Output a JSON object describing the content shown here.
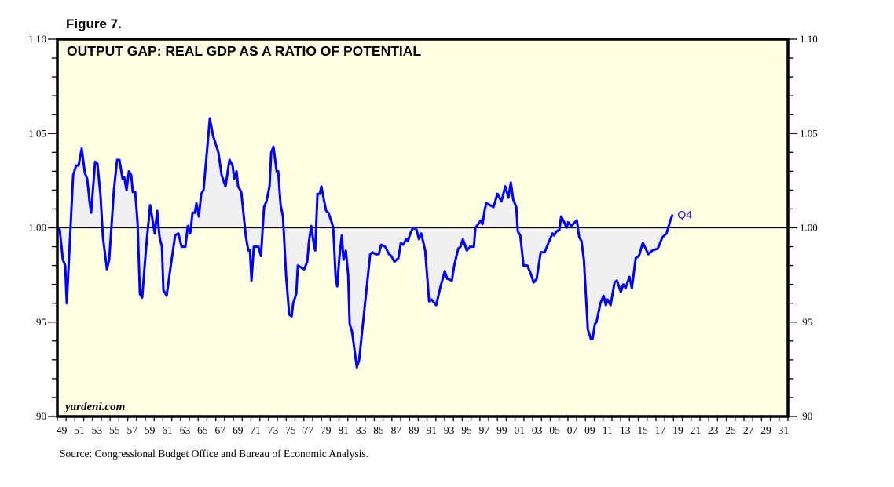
{
  "figure_label": "Figure 7.",
  "source": "Source: Congressional Budget Office and Bureau of Economic Analysis.",
  "watermark": "yardeni.com",
  "colors": {
    "line": "#0000ff",
    "plot_bg": "#ffffe3",
    "fill": "#f0f0f0",
    "end_label": "#2200ff"
  },
  "chart_data": {
    "type": "line",
    "title": "OUTPUT GAP: REAL GDP AS A RATIO OF POTENTIAL",
    "xlabel": "",
    "ylabel": "",
    "xlim": [
      1949,
      2032
    ],
    "ylim": [
      0.9,
      1.1
    ],
    "reference_line": 1.0,
    "fill_to_reference": true,
    "y_ticks": [
      "1.10",
      "1.05",
      "1.00",
      ".95",
      ".90"
    ],
    "y_tick_values": [
      1.1,
      1.05,
      1.0,
      0.95,
      0.9
    ],
    "x_tick_labels": [
      "49",
      "51",
      "53",
      "55",
      "57",
      "59",
      "61",
      "63",
      "65",
      "67",
      "69",
      "71",
      "73",
      "75",
      "77",
      "79",
      "81",
      "83",
      "85",
      "87",
      "89",
      "91",
      "93",
      "95",
      "97",
      "99",
      "01",
      "03",
      "05",
      "07",
      "09",
      "11",
      "13",
      "15",
      "17",
      "19",
      "21",
      "23",
      "25",
      "27",
      "29",
      "31"
    ],
    "end_label": "Q4",
    "legend": "none",
    "grid": false,
    "series": [
      {
        "name": "Real GDP / Potential",
        "x": [
          1949.0,
          1949.27,
          1949.63,
          1949.89,
          1950.07,
          1950.34,
          1950.79,
          1951.14,
          1951.41,
          1951.77,
          1952.13,
          1952.39,
          1952.66,
          1952.84,
          1953.29,
          1953.55,
          1953.91,
          1954.18,
          1954.63,
          1954.89,
          1955.43,
          1955.79,
          1956.05,
          1956.41,
          1956.59,
          1956.86,
          1957.13,
          1957.39,
          1957.57,
          1957.84,
          1958.11,
          1958.38,
          1958.64,
          1959.09,
          1959.54,
          1960.07,
          1960.34,
          1960.61,
          1960.88,
          1961.05,
          1961.41,
          1961.86,
          1962.39,
          1962.75,
          1963.11,
          1963.55,
          1963.82,
          1964.09,
          1964.36,
          1964.63,
          1964.8,
          1965.07,
          1965.34,
          1965.61,
          1966.32,
          1966.68,
          1967.3,
          1967.66,
          1968.11,
          1968.55,
          1968.91,
          1969.09,
          1969.36,
          1969.54,
          1969.89,
          1970.43,
          1970.7,
          1970.88,
          1971.05,
          1971.32,
          1971.68,
          1971.86,
          1972.13,
          1972.48,
          1972.75,
          1973.11,
          1973.29,
          1973.55,
          1973.91,
          1974.09,
          1974.36,
          1974.63,
          1974.98,
          1975.34,
          1975.61,
          1975.79,
          1976.14,
          1976.32,
          1976.68,
          1977.04,
          1977.39,
          1977.57,
          1977.84,
          1978.11,
          1978.29,
          1978.55,
          1978.82,
          1979.0,
          1979.27,
          1979.54,
          1979.8,
          1980.16,
          1980.34,
          1980.61,
          1980.79,
          1981.05,
          1981.32,
          1981.5,
          1981.77,
          1982.04,
          1982.21,
          1982.48,
          1983.02,
          1983.29,
          1983.82,
          1984.54,
          1984.8,
          1985.16,
          1985.52,
          1985.79,
          1986.23,
          1986.68,
          1986.95,
          1987.3,
          1987.75,
          1988.02,
          1988.29,
          1988.64,
          1988.82,
          1989.18,
          1989.45,
          1989.8,
          1990.07,
          1990.34,
          1990.79,
          1991.23,
          1991.5,
          1992.04,
          1992.48,
          1993.02,
          1993.29,
          1993.82,
          1994.09,
          1994.54,
          1994.8,
          1995.07,
          1995.52,
          1995.88,
          1996.32,
          1996.5,
          1997.13,
          1997.3,
          1997.57,
          1997.75,
          1998.55,
          1999.0,
          1999.45,
          1999.89,
          2000.25,
          2000.52,
          2000.79,
          2001.14,
          2001.32,
          2001.59,
          2001.96,
          2002.39,
          2002.75,
          2003.11,
          2003.46,
          2003.91,
          2004.36,
          2004.8,
          2005.25,
          2005.43,
          2005.7,
          2006.05,
          2006.23,
          2006.59,
          2006.86,
          2007.04,
          2007.39,
          2008.02,
          2008.29,
          2008.55,
          2008.82,
          2009.27,
          2009.63,
          2009.8,
          2010.07,
          2010.25,
          2010.7,
          2011.05,
          2011.32,
          2011.5,
          2011.86,
          2012.3,
          2012.57,
          2013.02,
          2013.29,
          2013.55,
          2014.0,
          2014.27,
          2014.71,
          2015.07,
          2015.52,
          2016.14,
          2016.59,
          2017.21,
          2017.75,
          2018.2,
          2018.64,
          2018.91
        ],
        "y": [
          1.0,
          0.999,
          0.983,
          0.98,
          0.96,
          0.985,
          1.028,
          1.033,
          1.033,
          1.042,
          1.029,
          1.026,
          1.014,
          1.008,
          1.035,
          1.034,
          1.017,
          0.995,
          0.978,
          0.983,
          1.02,
          1.036,
          1.036,
          1.026,
          1.027,
          1.02,
          1.03,
          1.028,
          1.019,
          1.019,
          1.003,
          0.965,
          0.963,
          0.99,
          1.012,
          0.997,
          1.009,
          0.995,
          0.99,
          0.967,
          0.964,
          0.979,
          0.996,
          0.997,
          0.99,
          0.99,
          1.001,
          0.997,
          1.008,
          1.008,
          1.013,
          1.006,
          1.018,
          1.02,
          1.058,
          1.049,
          1.04,
          1.028,
          1.022,
          1.036,
          1.033,
          1.026,
          1.03,
          1.022,
          1.019,
          0.995,
          0.988,
          0.988,
          0.972,
          0.99,
          0.99,
          0.99,
          0.985,
          1.011,
          1.014,
          1.022,
          1.04,
          1.043,
          1.03,
          1.03,
          1.012,
          1.006,
          0.975,
          0.954,
          0.953,
          0.96,
          0.965,
          0.98,
          0.979,
          0.978,
          0.982,
          0.992,
          1.001,
          0.992,
          0.988,
          1.018,
          1.018,
          1.022,
          1.015,
          1.009,
          1.008,
          1.003,
          1.0,
          0.974,
          0.969,
          0.985,
          0.996,
          0.983,
          0.988,
          0.975,
          0.949,
          0.945,
          0.926,
          0.93,
          0.954,
          0.986,
          0.987,
          0.986,
          0.986,
          0.991,
          0.99,
          0.986,
          0.985,
          0.982,
          0.984,
          0.992,
          0.991,
          0.994,
          0.993,
          0.998,
          1.0,
          0.999,
          0.994,
          0.997,
          0.988,
          0.961,
          0.962,
          0.959,
          0.968,
          0.977,
          0.973,
          0.972,
          0.98,
          0.989,
          0.99,
          0.994,
          0.988,
          0.99,
          0.99,
          1.0,
          1.004,
          1.002,
          1.01,
          1.013,
          1.011,
          1.018,
          1.014,
          1.022,
          1.016,
          1.024,
          1.015,
          1.011,
          0.998,
          0.996,
          0.98,
          0.98,
          0.976,
          0.971,
          0.973,
          0.987,
          0.987,
          0.992,
          0.997,
          0.996,
          0.998,
          0.999,
          1.006,
          1.003,
          1.0,
          1.003,
          1.001,
          1.004,
          0.995,
          0.993,
          0.983,
          0.946,
          0.941,
          0.941,
          0.949,
          0.95,
          0.96,
          0.964,
          0.959,
          0.962,
          0.959,
          0.971,
          0.972,
          0.966,
          0.97,
          0.968,
          0.974,
          0.968,
          0.984,
          0.985,
          0.992,
          0.986,
          0.988,
          0.989,
          0.995,
          0.997,
          1.004,
          1.007
        ]
      }
    ]
  }
}
